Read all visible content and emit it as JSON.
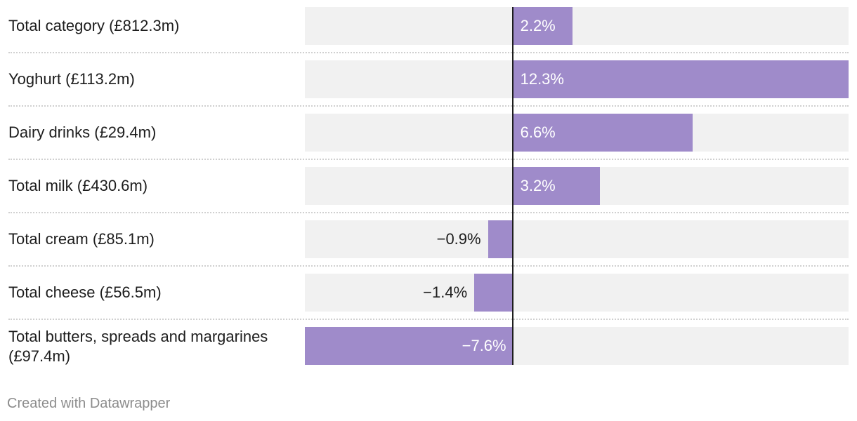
{
  "chart_data": {
    "type": "bar",
    "orientation": "horizontal",
    "categories": [
      "Total category (£812.3m)",
      "Yoghurt (£113.2m)",
      "Dairy drinks (£29.4m)",
      "Total milk (£430.6m)",
      "Total cream (£85.1m)",
      "Total cheese (£56.5m)",
      "Total butters, spreads and margarines (£97.4m)"
    ],
    "values": [
      2.2,
      12.3,
      6.6,
      3.2,
      -0.9,
      -1.4,
      -7.6
    ],
    "value_labels": [
      "2.2%",
      "12.3%",
      "6.6%",
      "3.2%",
      "−0.9%",
      "−1.4%",
      "−7.6%"
    ],
    "xlim": [
      -7.6,
      12.3
    ],
    "grid": false,
    "colors": {
      "bar": "#9f8bca",
      "track": "#f1f1f1",
      "zero_line": "#1d1d1d",
      "divider": "#d0d0d0"
    }
  },
  "footer": {
    "credit": "Created with Datawrapper"
  }
}
